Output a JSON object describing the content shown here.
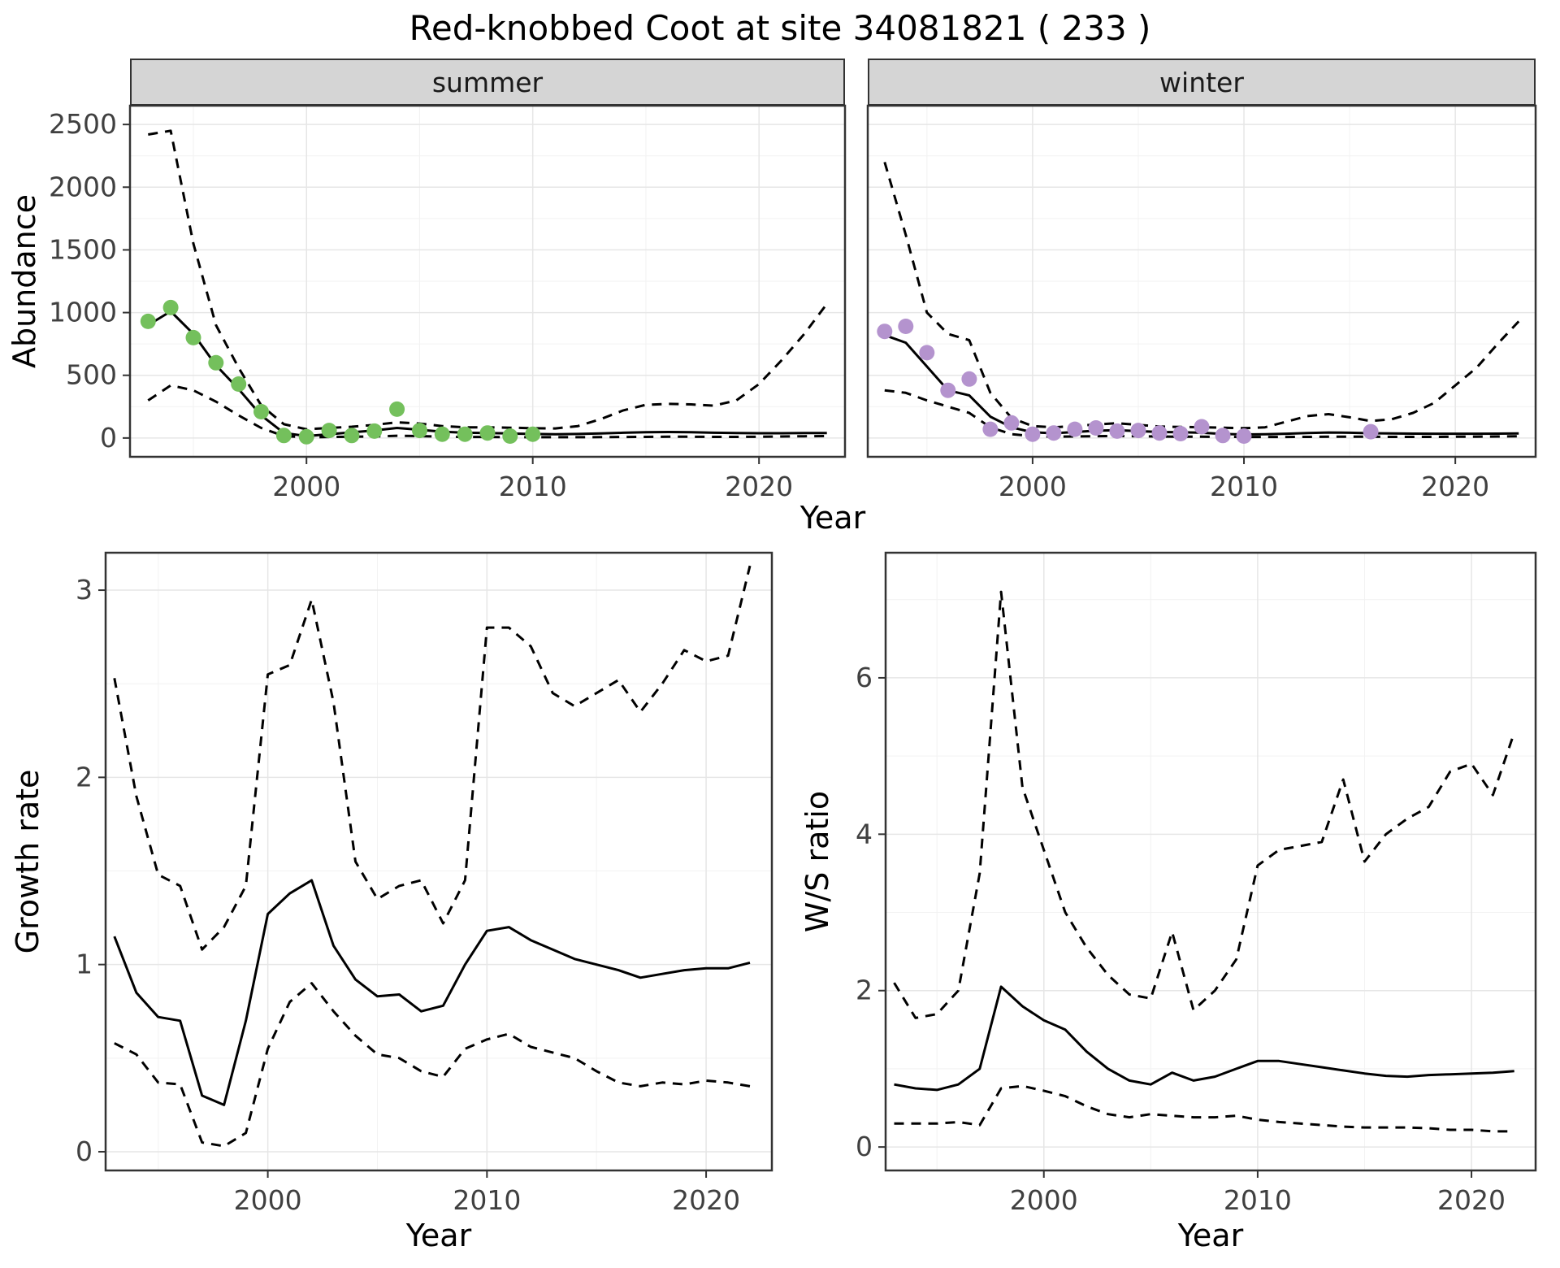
{
  "title": "Red-knobbed Coot at site 34081821 ( 233 )",
  "labels": {
    "y_top": "Abundance",
    "x_top": "Year",
    "y_growth": "Growth rate",
    "x_bottom_left": "Year",
    "y_ws": "W/S ratio",
    "x_bottom_right": "Year"
  },
  "facets": {
    "summer": "summer",
    "winter": "winter"
  },
  "colors": {
    "summer_points": "#74c05c",
    "winter_points": "#b493ce",
    "line": "#000000",
    "strip_bg": "#d5d5d5",
    "panel_border": "#333333",
    "grid_major": "#e6e6e6",
    "grid_minor": "#f2f2f2",
    "tick_text": "#404040"
  },
  "chart_data": [
    {
      "id": "abundance-summer",
      "type": "line",
      "facet": "summer",
      "xlabel": "Year",
      "ylabel": "Abundance",
      "xlim": [
        1992.2,
        2023.8
      ],
      "ylim": [
        -150,
        2650
      ],
      "xticks": [
        2000,
        2010,
        2020
      ],
      "yticks": [
        0,
        500,
        1000,
        1500,
        2000,
        2500
      ],
      "xminor": [
        1995,
        2005,
        2015
      ],
      "yminor": [
        250,
        750,
        1250,
        1750,
        2250
      ],
      "years": [
        1993,
        1994,
        1995,
        1996,
        1997,
        1998,
        1999,
        2000,
        2001,
        2002,
        2003,
        2004,
        2005,
        2006,
        2007,
        2008,
        2009,
        2010,
        2011,
        2012,
        2013,
        2014,
        2015,
        2016,
        2017,
        2018,
        2019,
        2020,
        2021,
        2022,
        2023
      ],
      "series": [
        {
          "name": "fit",
          "style": "solid",
          "values": [
            900,
            1010,
            830,
            580,
            390,
            180,
            40,
            15,
            30,
            45,
            60,
            80,
            65,
            50,
            42,
            40,
            36,
            32,
            30,
            32,
            36,
            42,
            46,
            48,
            46,
            42,
            40,
            38,
            38,
            39,
            40
          ]
        },
        {
          "name": "upper_ci",
          "style": "dashed",
          "values": [
            2420,
            2450,
            1550,
            900,
            560,
            260,
            110,
            70,
            80,
            90,
            105,
            125,
            115,
            95,
            85,
            85,
            82,
            78,
            76,
            95,
            150,
            220,
            265,
            272,
            268,
            258,
            300,
            430,
            620,
            830,
            1070
          ]
        },
        {
          "name": "lower_ci",
          "style": "dashed",
          "values": [
            300,
            420,
            380,
            290,
            180,
            80,
            15,
            5,
            8,
            10,
            12,
            18,
            15,
            10,
            8,
            8,
            7,
            6,
            6,
            6,
            7,
            8,
            9,
            10,
            10,
            9,
            9,
            10,
            12,
            14,
            16
          ]
        }
      ],
      "points": {
        "name": "observed",
        "color": "#74c05c",
        "x": [
          1993,
          1994,
          1995,
          1996,
          1997,
          1998,
          1999,
          2000,
          2001,
          2002,
          2003,
          2004,
          2005,
          2006,
          2007,
          2008,
          2009,
          2010
        ],
        "y": [
          930,
          1040,
          800,
          600,
          430,
          210,
          20,
          10,
          60,
          20,
          55,
          230,
          60,
          30,
          30,
          40,
          15,
          30
        ]
      }
    },
    {
      "id": "abundance-winter",
      "type": "line",
      "facet": "winter",
      "xlabel": "Year",
      "ylabel": "Abundance",
      "xlim": [
        1992.2,
        2023.8
      ],
      "ylim": [
        -150,
        2650
      ],
      "xticks": [
        2000,
        2010,
        2020
      ],
      "yticks": [
        0,
        500,
        1000,
        1500,
        2000,
        2500
      ],
      "xminor": [
        1995,
        2005,
        2015
      ],
      "yminor": [
        250,
        750,
        1250,
        1750,
        2250
      ],
      "years": [
        1993,
        1994,
        1995,
        1996,
        1997,
        1998,
        1999,
        2000,
        2001,
        2002,
        2003,
        2004,
        2005,
        2006,
        2007,
        2008,
        2009,
        2010,
        2011,
        2012,
        2013,
        2014,
        2015,
        2016,
        2017,
        2018,
        2019,
        2020,
        2021,
        2022,
        2023
      ],
      "series": [
        {
          "name": "fit",
          "style": "solid",
          "values": [
            820,
            760,
            570,
            380,
            340,
            170,
            85,
            45,
            38,
            48,
            58,
            62,
            55,
            48,
            46,
            42,
            32,
            28,
            30,
            34,
            40,
            44,
            42,
            38,
            36,
            35,
            34,
            34,
            34,
            35,
            36
          ]
        },
        {
          "name": "upper_ci",
          "style": "dashed",
          "values": [
            2200,
            1620,
            1000,
            830,
            780,
            360,
            160,
            95,
            85,
            95,
            108,
            118,
            105,
            92,
            88,
            86,
            82,
            78,
            85,
            130,
            175,
            190,
            165,
            135,
            150,
            200,
            280,
            420,
            560,
            750,
            930
          ]
        },
        {
          "name": "lower_ci",
          "style": "dashed",
          "values": [
            380,
            360,
            300,
            250,
            200,
            85,
            30,
            15,
            10,
            12,
            14,
            16,
            14,
            12,
            10,
            10,
            9,
            8,
            8,
            8,
            9,
            10,
            10,
            10,
            9,
            9,
            9,
            10,
            11,
            12,
            14
          ]
        }
      ],
      "points": {
        "name": "observed",
        "color": "#b493ce",
        "x": [
          1993,
          1994,
          1995,
          1996,
          1997,
          1998,
          1999,
          2000,
          2001,
          2002,
          2003,
          2004,
          2005,
          2006,
          2007,
          2008,
          2009,
          2010,
          2016
        ],
        "y": [
          850,
          890,
          680,
          380,
          470,
          70,
          120,
          30,
          40,
          70,
          80,
          55,
          60,
          40,
          35,
          90,
          20,
          15,
          50
        ]
      }
    },
    {
      "id": "growth-rate",
      "type": "line",
      "xlabel": "Year",
      "ylabel": "Growth rate",
      "xlim": [
        1992.6,
        2023.0
      ],
      "ylim": [
        -0.1,
        3.2
      ],
      "xticks": [
        2000,
        2010,
        2020
      ],
      "yticks": [
        0,
        1,
        2,
        3
      ],
      "xminor": [
        1995,
        2005,
        2015
      ],
      "yminor": [
        0.5,
        1.5,
        2.5
      ],
      "years": [
        1993,
        1994,
        1995,
        1996,
        1997,
        1998,
        1999,
        2000,
        2001,
        2002,
        2003,
        2004,
        2005,
        2006,
        2007,
        2008,
        2009,
        2010,
        2011,
        2012,
        2013,
        2014,
        2015,
        2016,
        2017,
        2018,
        2019,
        2020,
        2021,
        2022
      ],
      "series": [
        {
          "name": "fit",
          "style": "solid",
          "values": [
            1.15,
            0.85,
            0.72,
            0.7,
            0.3,
            0.25,
            0.7,
            1.27,
            1.38,
            1.45,
            1.1,
            0.92,
            0.83,
            0.84,
            0.75,
            0.78,
            1.0,
            1.18,
            1.2,
            1.13,
            1.08,
            1.03,
            1.0,
            0.97,
            0.93,
            0.95,
            0.97,
            0.98,
            0.98,
            1.01
          ]
        },
        {
          "name": "upper_ci",
          "style": "dashed",
          "values": [
            2.53,
            1.9,
            1.48,
            1.42,
            1.08,
            1.2,
            1.42,
            2.55,
            2.6,
            2.95,
            2.4,
            1.55,
            1.35,
            1.42,
            1.45,
            1.22,
            1.45,
            2.8,
            2.8,
            2.7,
            2.45,
            2.38,
            2.45,
            2.52,
            2.35,
            2.5,
            2.68,
            2.62,
            2.65,
            3.13
          ]
        },
        {
          "name": "lower_ci",
          "style": "dashed",
          "values": [
            0.58,
            0.52,
            0.37,
            0.36,
            0.05,
            0.03,
            0.1,
            0.55,
            0.8,
            0.9,
            0.75,
            0.62,
            0.52,
            0.5,
            0.43,
            0.4,
            0.55,
            0.6,
            0.63,
            0.56,
            0.53,
            0.5,
            0.43,
            0.37,
            0.35,
            0.37,
            0.36,
            0.38,
            0.37,
            0.35
          ]
        }
      ]
    },
    {
      "id": "ws-ratio",
      "type": "line",
      "xlabel": "Year",
      "ylabel": "W/S ratio",
      "xlim": [
        1992.6,
        2023.0
      ],
      "ylim": [
        -0.3,
        7.6
      ],
      "xticks": [
        2000,
        2010,
        2020
      ],
      "yticks": [
        0,
        2,
        4,
        6
      ],
      "xminor": [
        1995,
        2005,
        2015
      ],
      "yminor": [
        1,
        3,
        5,
        7
      ],
      "years": [
        1993,
        1994,
        1995,
        1996,
        1997,
        1998,
        1999,
        2000,
        2001,
        2002,
        2003,
        2004,
        2005,
        2006,
        2007,
        2008,
        2009,
        2010,
        2011,
        2012,
        2013,
        2014,
        2015,
        2016,
        2017,
        2018,
        2019,
        2020,
        2021,
        2022
      ],
      "series": [
        {
          "name": "fit",
          "style": "solid",
          "values": [
            0.8,
            0.75,
            0.73,
            0.8,
            1.0,
            2.05,
            1.8,
            1.62,
            1.5,
            1.22,
            1.0,
            0.85,
            0.8,
            0.95,
            0.85,
            0.9,
            1.0,
            1.1,
            1.1,
            1.06,
            1.02,
            0.98,
            0.94,
            0.91,
            0.9,
            0.92,
            0.93,
            0.94,
            0.95,
            0.97
          ]
        },
        {
          "name": "upper_ci",
          "style": "dashed",
          "values": [
            2.1,
            1.65,
            1.7,
            2.0,
            3.5,
            7.1,
            4.6,
            3.8,
            3.0,
            2.55,
            2.2,
            1.95,
            1.9,
            2.75,
            1.75,
            2.0,
            2.4,
            3.6,
            3.8,
            3.85,
            3.9,
            4.7,
            3.65,
            4.0,
            4.2,
            4.35,
            4.8,
            4.9,
            4.5,
            5.3
          ]
        },
        {
          "name": "lower_ci",
          "style": "dashed",
          "values": [
            0.3,
            0.3,
            0.3,
            0.32,
            0.28,
            0.75,
            0.78,
            0.72,
            0.65,
            0.52,
            0.42,
            0.38,
            0.42,
            0.4,
            0.38,
            0.38,
            0.4,
            0.35,
            0.32,
            0.3,
            0.28,
            0.26,
            0.25,
            0.25,
            0.25,
            0.24,
            0.22,
            0.22,
            0.2,
            0.2
          ]
        }
      ]
    }
  ]
}
